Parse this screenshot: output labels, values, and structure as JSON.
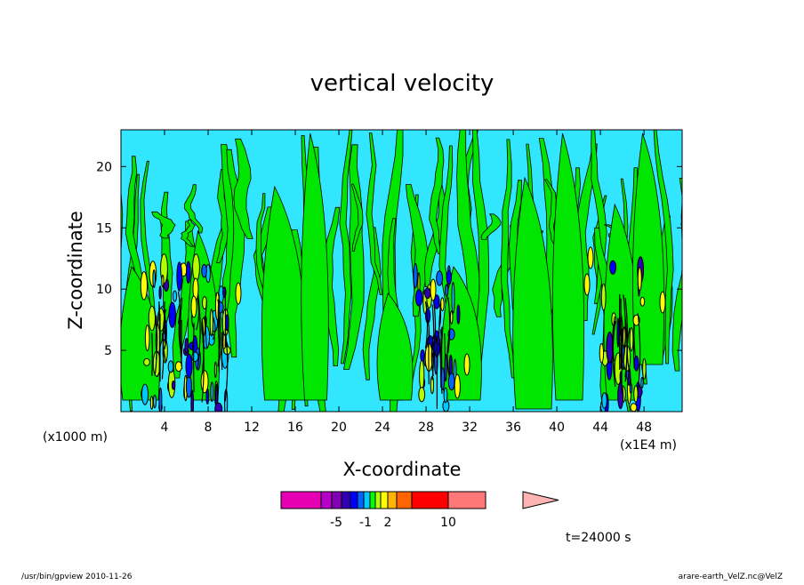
{
  "chart_data": {
    "type": "heatmap",
    "title": "vertical velocity",
    "xlabel": "X-coordinate",
    "ylabel": "Z-coordinate",
    "x_unit_left": "(x1000 m)",
    "x_unit_right": "(x1E4 m)",
    "xticks": [
      "4",
      "8",
      "12",
      "16",
      "20",
      "24",
      "28",
      "32",
      "36",
      "40",
      "44",
      "48"
    ],
    "xtick_values": [
      4,
      8,
      12,
      16,
      20,
      24,
      28,
      32,
      36,
      40,
      44,
      48
    ],
    "yticks": [
      "5",
      "10",
      "15",
      "20"
    ],
    "ytick_values": [
      5,
      10,
      15,
      20
    ],
    "xlim": [
      0,
      51.5
    ],
    "ylim": [
      0,
      23
    ],
    "colorbar": {
      "labels": [
        "-5",
        "-1",
        "2",
        "10"
      ],
      "colors": [
        "#e600b4",
        "#b400c8",
        "#8200b4",
        "#3200b4",
        "#0000ff",
        "#0064ff",
        "#00c8ff",
        "#00ff00",
        "#b4ff00",
        "#ffff00",
        "#ffb400",
        "#ff6400",
        "#ff0000",
        "#ff7878",
        "#ffb4b4"
      ]
    },
    "background_level_color": "#33e6ff",
    "positive_level_color": "#00e600",
    "convective_regions_x": [
      4,
      8,
      29,
      46
    ]
  },
  "annotation": {
    "time": "t=24000 s"
  },
  "footer": {
    "left": "/usr/bin/gpview  2010-11-26",
    "right": "arare-earth_VelZ.nc@VelZ"
  }
}
